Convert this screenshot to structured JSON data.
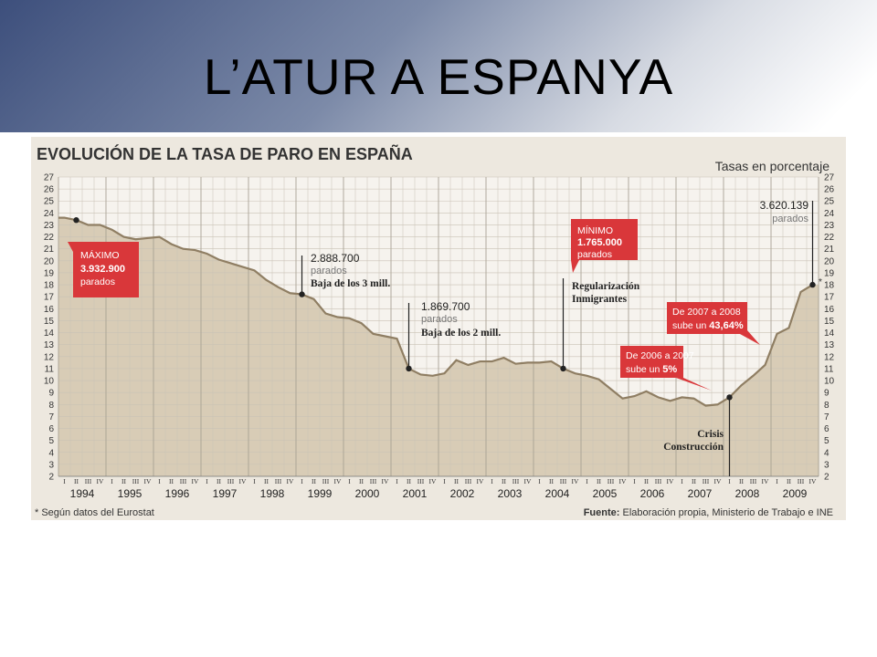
{
  "slide": {
    "title": "L’ATUR A ESPANYA"
  },
  "chart_data": {
    "type": "area",
    "title": "EVOLUCIÓN DE LA TASA DE PARO EN ESPAÑA",
    "subtitle": "Tasas en porcentaje",
    "ylim": [
      2,
      27
    ],
    "yticks": [
      2,
      3,
      4,
      5,
      6,
      7,
      8,
      9,
      10,
      11,
      12,
      13,
      14,
      15,
      16,
      17,
      18,
      19,
      20,
      21,
      22,
      23,
      24,
      25,
      26,
      27
    ],
    "quarter_labels": [
      "I",
      "II",
      "III",
      "IV"
    ],
    "years": [
      "1994",
      "1995",
      "1996",
      "1997",
      "1998",
      "1999",
      "2000",
      "2001",
      "2002",
      "2003",
      "2004",
      "2005",
      "2006",
      "2007",
      "2008",
      "2009"
    ],
    "grid": true,
    "series": [
      {
        "values": [
          23.6,
          23.4,
          23.0,
          23.0,
          22.6,
          22.0,
          21.8,
          21.9,
          22.0,
          21.4,
          21.0,
          20.9,
          20.6,
          20.1,
          19.8,
          19.5,
          19.2,
          18.4,
          17.8,
          17.3,
          17.2,
          16.8,
          15.6,
          15.3,
          15.2,
          14.8,
          13.9,
          13.7,
          13.5,
          11.0,
          10.5,
          10.4,
          10.6,
          11.7,
          11.3,
          11.6,
          11.6,
          11.9,
          11.4,
          11.5,
          11.5,
          11.6,
          11.0,
          10.6,
          10.4,
          10.1,
          9.3,
          8.5,
          8.7,
          9.1,
          8.6,
          8.3,
          8.6,
          8.5,
          7.9,
          8.0,
          8.6,
          9.6,
          10.4,
          11.3,
          13.9,
          14.4,
          17.4,
          18.0
        ]
      }
    ],
    "annotations": [
      {
        "box": [
          "MÁXIMO",
          "3.932.900",
          "parados"
        ]
      },
      {
        "number": "2.888.700",
        "unit": "parados",
        "note": "Baja de los 3 mill."
      },
      {
        "number": "1.869.700",
        "unit": "parados",
        "note": "Baja de los 2 mill."
      },
      {
        "box": [
          "MÍNIMO",
          "1.765.000",
          "parados"
        ]
      },
      {
        "note_lines": [
          "Regularización",
          "Inmigrantes"
        ]
      },
      {
        "box": [
          "De 2006 a 2007",
          "sube un ",
          "5%"
        ]
      },
      {
        "box": [
          "De 2007 a 2008",
          "sube un ",
          "43,64%"
        ]
      },
      {
        "note_lines": [
          "Crisis",
          "Construcción"
        ]
      },
      {
        "number": "3.620.139",
        "unit": "parados"
      }
    ],
    "asterisk": "*",
    "footnote": "* Según datos del Eurostat",
    "source_label": "Fuente:",
    "source_text": " Elaboración propia, Ministerio de Trabajo e INE"
  }
}
